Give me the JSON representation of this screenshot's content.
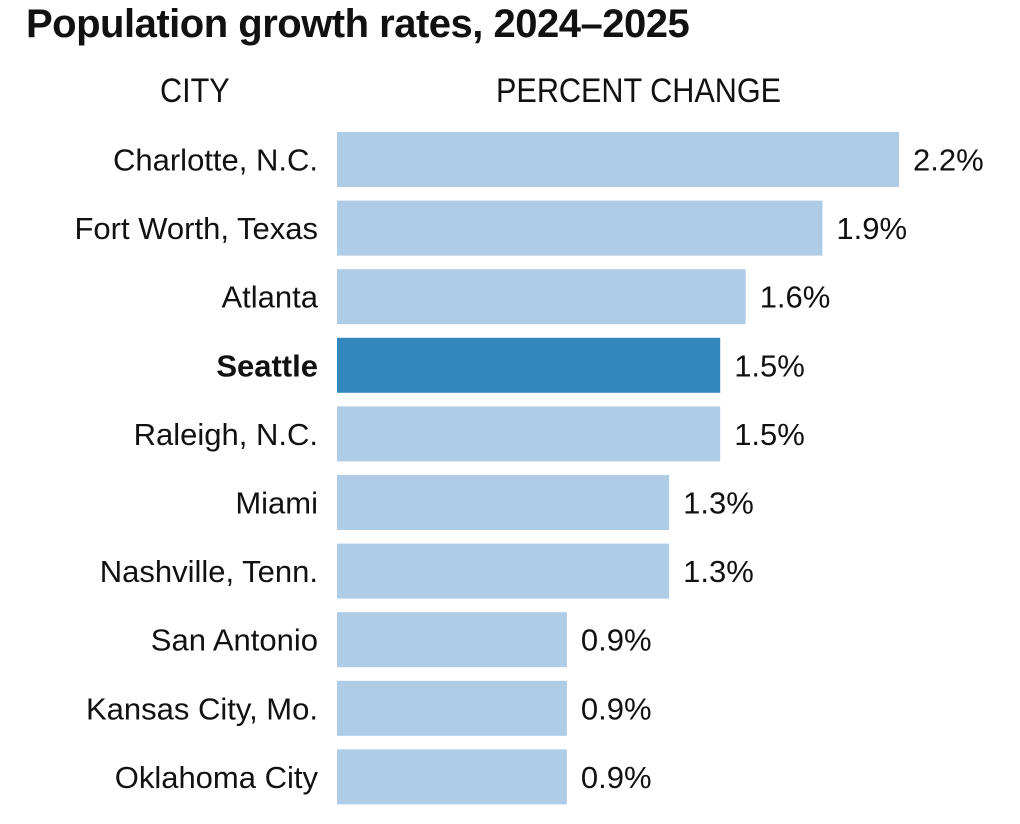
{
  "chart_data": {
    "type": "bar",
    "orientation": "horizontal",
    "title": "Population growth rates, 2024–2025",
    "category_header": "CITY",
    "value_header": "PERCENT CHANGE",
    "categories": [
      "Charlotte, N.C.",
      "Fort Worth, Texas",
      "Atlanta",
      "Seattle",
      "Raleigh, N.C.",
      "Miami",
      "Nashville, Tenn.",
      "San Antonio",
      "Kansas City, Mo.",
      "Oklahoma City"
    ],
    "values": [
      2.2,
      1.9,
      1.6,
      1.5,
      1.5,
      1.3,
      1.3,
      0.9,
      0.9,
      0.9
    ],
    "value_labels": [
      "2.2%",
      "1.9%",
      "1.6%",
      "1.5%",
      "1.5%",
      "1.3%",
      "1.3%",
      "0.9%",
      "0.9%",
      "0.9%"
    ],
    "highlight": "Seattle",
    "xlim": [
      0,
      2.2
    ],
    "grid": false,
    "colors": {
      "bar": "#aecce6",
      "highlight_bar": "#3288bd"
    }
  }
}
